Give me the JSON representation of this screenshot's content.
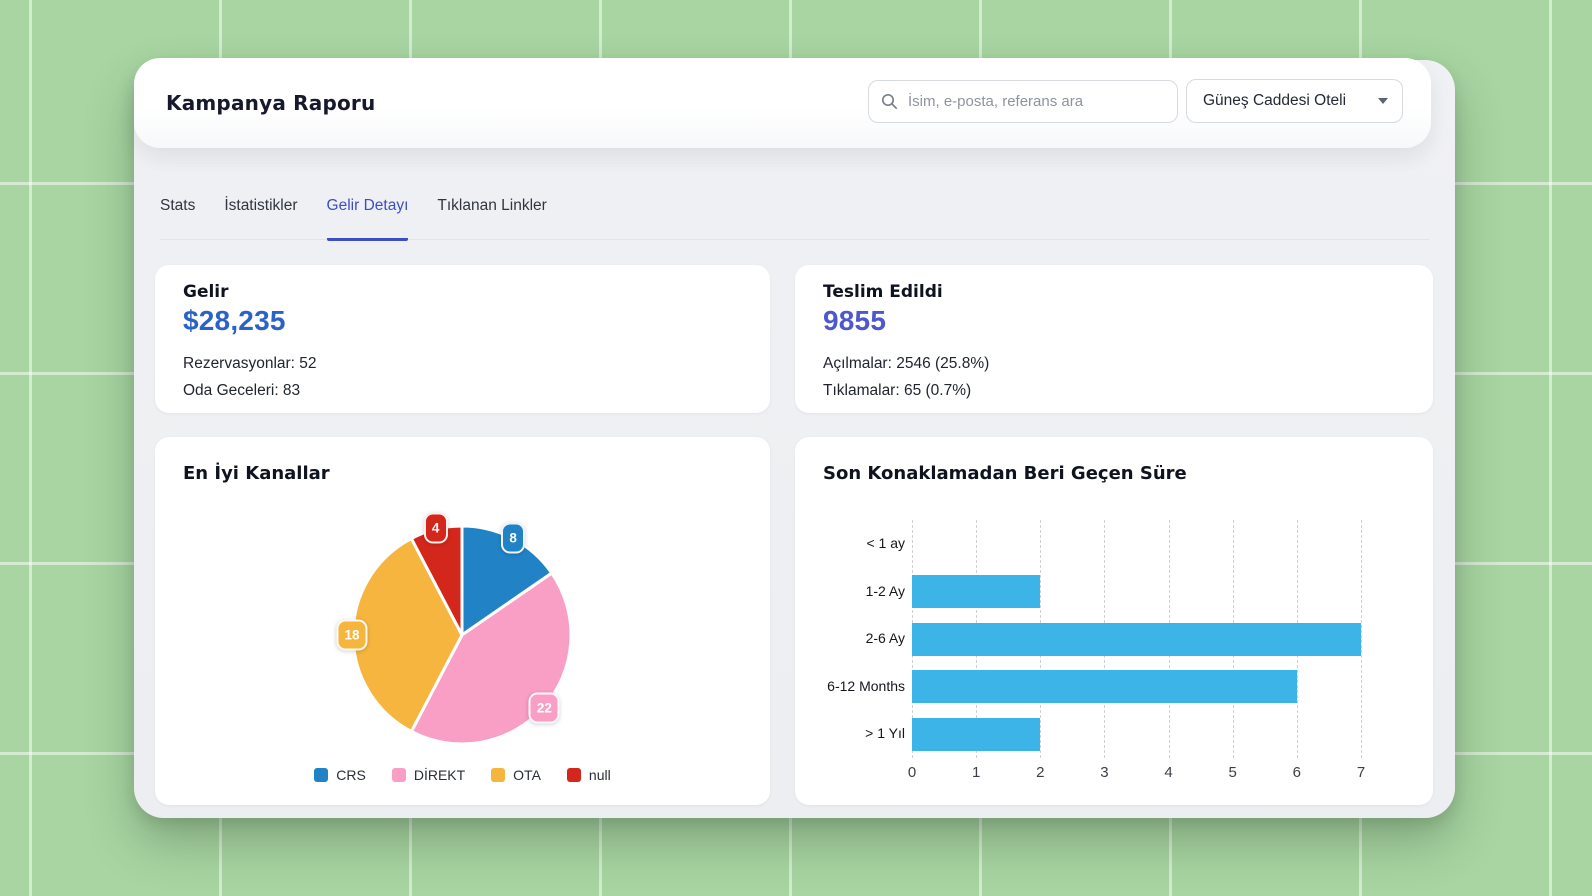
{
  "header": {
    "title": "Kampanya Raporu",
    "search": {
      "placeholder": "İsim, e-posta, referans ara",
      "value": ""
    },
    "property_selector": {
      "label": "Güneş Caddesi Oteli"
    }
  },
  "tabs": {
    "items": [
      {
        "label": "Stats",
        "active": false
      },
      {
        "label": "İstatistikler",
        "active": false
      },
      {
        "label": "Gelir Detayı",
        "active": true
      },
      {
        "label": "Tıklanan Linkler",
        "active": false
      }
    ],
    "active_color": "#3c4ec4"
  },
  "cards": {
    "revenue": {
      "title": "Gelir",
      "value": "$28,235",
      "value_color": "#2a63c8",
      "lines": [
        "Rezervasyonlar: 52",
        "Oda Geceleri: 83"
      ]
    },
    "delivered": {
      "title": "Teslim Edildi",
      "value": "9855",
      "value_color": "#4c58cc",
      "lines": [
        "Açılmalar: 2546 (25.8%)",
        "Tıklamalar: 65 (0.7%)"
      ]
    }
  },
  "chart_data": [
    {
      "type": "pie",
      "title": "En İyi Kanallar",
      "labels": [
        "CRS",
        "DİREKT",
        "OTA",
        "null"
      ],
      "values": [
        8,
        22,
        18,
        4
      ],
      "colors": [
        "#2183c5",
        "#f99fc5",
        "#f5b53e",
        "#d4271b"
      ],
      "start_angle_deg": 0,
      "direction": "clockwise",
      "data_label_style": "value badge on rim, white text",
      "legend_position": "bottom"
    },
    {
      "type": "bar",
      "title": "Son Konaklamadan Beri Geçen Süre",
      "orientation": "horizontal",
      "categories": [
        "< 1 ay",
        "1-2 Ay",
        "2-6 Ay",
        "6-12 Months",
        "> 1 Yıl"
      ],
      "values": [
        0,
        2,
        7,
        6,
        2
      ],
      "bar_color": "#3cb4e8",
      "xlim": [
        0,
        7
      ],
      "x_ticks": [
        0,
        1,
        2,
        3,
        4,
        5,
        6,
        7
      ],
      "grid": "dashed vertical gridlines"
    }
  ]
}
